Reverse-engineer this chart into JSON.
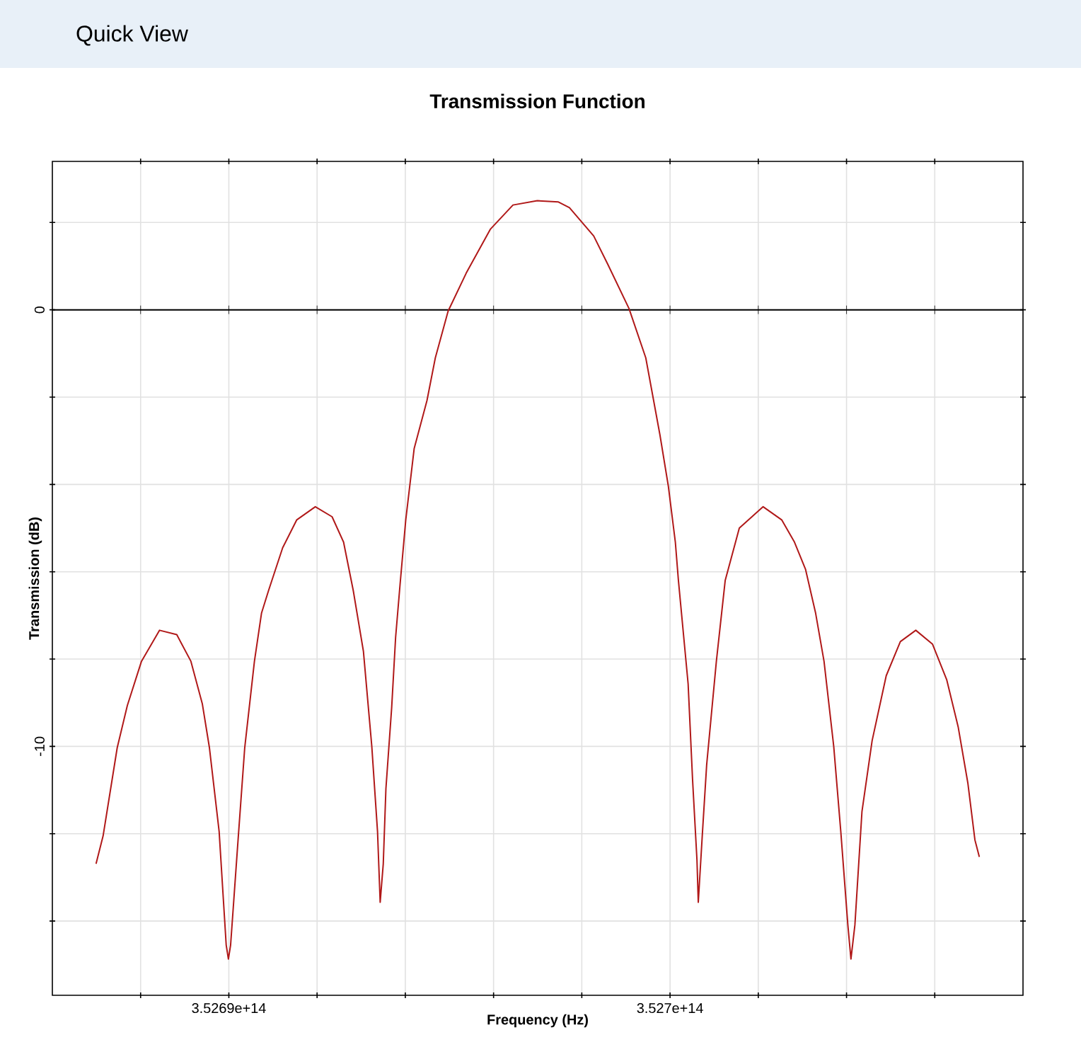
{
  "chart_data": {
    "type": "line",
    "title": "Transmission Function",
    "xlabel": "Frequency (Hz)",
    "ylabel": "Transmission (dB)",
    "annotations": [
      "Quick View"
    ],
    "xlim": [
      352686000000000.0,
      352708000000000.0
    ],
    "ylim": [
      -15.7,
      3.4
    ],
    "xticks": [
      {
        "value": 352688000000000.0,
        "label": null
      },
      {
        "value": 352690000000000.0,
        "label": "3.5269e+14"
      },
      {
        "value": 352692000000000.0,
        "label": null
      },
      {
        "value": 352694000000000.0,
        "label": null
      },
      {
        "value": 352696000000000.0,
        "label": null
      },
      {
        "value": 352698000000000.0,
        "label": null
      },
      {
        "value": 352700000000000.0,
        "label": "3.527e+14"
      },
      {
        "value": 352702000000000.0,
        "label": null
      },
      {
        "value": 352704000000000.0,
        "label": null
      },
      {
        "value": 352706000000000.0,
        "label": null
      }
    ],
    "yticks": [
      {
        "value": 2,
        "label": null
      },
      0,
      {
        "value": -2,
        "label": null
      },
      {
        "value": -4,
        "label": null
      },
      {
        "value": -6,
        "label": null
      },
      {
        "value": -8,
        "label": null
      },
      -10,
      {
        "value": -12,
        "label": null
      },
      {
        "value": -14,
        "label": null
      }
    ],
    "grid": true,
    "ref_lines": [
      {
        "axis": "y",
        "value": 0,
        "color": "#000000"
      }
    ],
    "series": [
      {
        "color": "#b01818",
        "x": [
          352686990000000.0,
          352687150000000.0,
          352687470000000.0,
          352687700000000.0,
          352688020000000.0,
          352688430000000.0,
          352688820000000.0,
          352689140000000.0,
          352689400000000.0,
          352689560000000.0,
          352689780000000.0,
          352689940000000.0,
          352689990000000.0,
          352690040000000.0,
          352690200000000.0,
          352690360000000.0,
          352690580000000.0,
          352690740000000.0,
          352690900000000.0,
          352691220000000.0,
          352691540000000.0,
          352691960000000.0,
          352692340000000.0,
          352692600000000.0,
          352692820000000.0,
          352693050000000.0,
          352693240000000.0,
          352693370000000.0,
          352693430000000.0,
          352693500000000.0,
          352693560000000.0,
          352693690000000.0,
          352693780000000.0,
          352693880000000.0,
          352694010000000.0,
          352694200000000.0,
          352694490000000.0,
          352694680000000.0,
          352694970000000.0,
          352695380000000.0,
          352695930000000.0,
          352696440000000.0,
          352696990000000.0,
          352697470000000.0,
          352697720000000.0,
          352698270000000.0,
          352698590000000.0,
          352699070000000.0,
          352699450000000.0,
          352699770000000.0,
          352699960000000.0,
          352700120000000.0,
          352700190000000.0,
          352700410000000.0,
          352700510000000.0,
          352700610000000.0,
          352700640000000.0,
          352700730000000.0,
          352700830000000.0,
          352701050000000.0,
          352701250000000.0,
          352701570000000.0,
          352702110000000.0,
          352702530000000.0,
          352702820000000.0,
          352703070000000.0,
          352703300000000.0,
          352703490000000.0,
          352703710000000.0,
          352703870000000.0,
          352704030000000.0,
          352704100000000.0,
          352704190000000.0,
          352704350000000.0,
          352704580000000.0,
          352704900000000.0,
          352705220000000.0,
          352705570000000.0,
          352705950000000.0,
          352706270000000.0,
          352706530000000.0,
          352706750000000.0,
          352706910000000.0,
          352707010000000.0
        ],
        "values": [
          -12.69,
          -12.05,
          -10.03,
          -9.06,
          -8.05,
          -7.34,
          -7.44,
          -8.05,
          -9.03,
          -10.03,
          -11.95,
          -14.55,
          -14.87,
          -14.55,
          -12.27,
          -10.03,
          -8.05,
          -6.95,
          -6.43,
          -5.45,
          -4.81,
          -4.51,
          -4.74,
          -5.32,
          -6.43,
          -7.82,
          -10.0,
          -11.95,
          -13.57,
          -12.69,
          -10.97,
          -9.12,
          -7.5,
          -6.3,
          -4.81,
          -3.18,
          -2.08,
          -1.1,
          -0.03,
          0.84,
          1.85,
          2.4,
          2.5,
          2.47,
          2.34,
          1.69,
          1.04,
          0.03,
          -1.1,
          -2.86,
          -4.03,
          -5.32,
          -6.2,
          -8.57,
          -10.75,
          -12.6,
          -13.57,
          -12.05,
          -10.42,
          -8.05,
          -6.2,
          -5.0,
          -4.51,
          -4.81,
          -5.32,
          -5.94,
          -6.95,
          -8.05,
          -10.0,
          -11.95,
          -14.09,
          -14.87,
          -14.09,
          -11.49,
          -9.87,
          -8.38,
          -7.6,
          -7.34,
          -7.66,
          -8.47,
          -9.55,
          -10.84,
          -12.14,
          -12.53
        ]
      }
    ]
  }
}
